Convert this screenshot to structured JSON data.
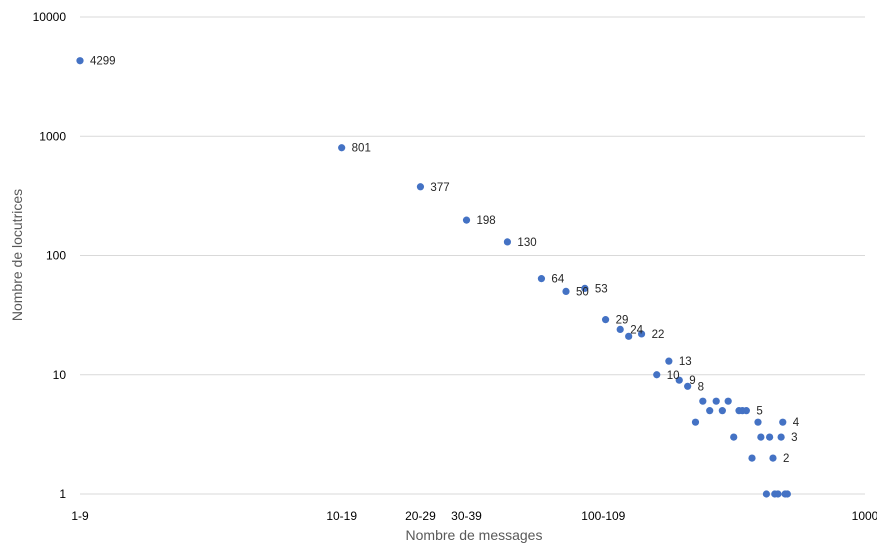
{
  "chart_data": {
    "type": "scatter",
    "title": "",
    "xlabel": "Nombre de messages",
    "ylabel": "Nombre de locutrices",
    "x_scale": "log",
    "y_scale": "log",
    "xlim": [
      1,
      1000
    ],
    "ylim": [
      1,
      10000
    ],
    "grid": "horizontal",
    "legend": "none",
    "marker_color": "#4472c4",
    "x_ticks": [
      {
        "value": 1,
        "label": "1-9"
      },
      {
        "value": 10,
        "label": "10-19"
      },
      {
        "value": 20,
        "label": "20-29"
      },
      {
        "value": 30,
        "label": "30-39"
      },
      {
        "value": 100,
        "label": "100-109"
      },
      {
        "value": 1000,
        "label": "1000"
      }
    ],
    "y_ticks": [
      {
        "value": 1,
        "label": "1"
      },
      {
        "value": 10,
        "label": "10"
      },
      {
        "value": 100,
        "label": "100"
      },
      {
        "value": 1000,
        "label": "1000"
      },
      {
        "value": 10000,
        "label": "10000"
      }
    ],
    "points": [
      {
        "x": 1,
        "y": 4299,
        "label": "4299"
      },
      {
        "x": 10,
        "y": 801,
        "label": "801"
      },
      {
        "x": 20,
        "y": 377,
        "label": "377"
      },
      {
        "x": 30,
        "y": 198,
        "label": "198"
      },
      {
        "x": 43,
        "y": 130,
        "label": "130"
      },
      {
        "x": 58,
        "y": 64,
        "label": "64"
      },
      {
        "x": 72,
        "y": 50,
        "label": "50"
      },
      {
        "x": 85,
        "y": 53,
        "label": "53"
      },
      {
        "x": 102,
        "y": 29,
        "label": "29"
      },
      {
        "x": 116,
        "y": 24,
        "label": "24"
      },
      {
        "x": 125,
        "y": 21,
        "label": ""
      },
      {
        "x": 140,
        "y": 22,
        "label": "22"
      },
      {
        "x": 160,
        "y": 10,
        "label": "10"
      },
      {
        "x": 178,
        "y": 13,
        "label": "13"
      },
      {
        "x": 195,
        "y": 9,
        "label": "9"
      },
      {
        "x": 210,
        "y": 8,
        "label": "8"
      },
      {
        "x": 225,
        "y": 4,
        "label": ""
      },
      {
        "x": 240,
        "y": 6,
        "label": ""
      },
      {
        "x": 255,
        "y": 5,
        "label": ""
      },
      {
        "x": 270,
        "y": 6,
        "label": ""
      },
      {
        "x": 285,
        "y": 5,
        "label": ""
      },
      {
        "x": 300,
        "y": 6,
        "label": ""
      },
      {
        "x": 315,
        "y": 3,
        "label": ""
      },
      {
        "x": 330,
        "y": 5,
        "label": ""
      },
      {
        "x": 340,
        "y": 5,
        "label": ""
      },
      {
        "x": 352,
        "y": 5,
        "label": "5"
      },
      {
        "x": 370,
        "y": 2,
        "label": ""
      },
      {
        "x": 390,
        "y": 4,
        "label": ""
      },
      {
        "x": 400,
        "y": 3,
        "label": ""
      },
      {
        "x": 420,
        "y": 1,
        "label": ""
      },
      {
        "x": 432,
        "y": 3,
        "label": ""
      },
      {
        "x": 445,
        "y": 2,
        "label": "2"
      },
      {
        "x": 452,
        "y": 1,
        "label": ""
      },
      {
        "x": 465,
        "y": 1,
        "label": ""
      },
      {
        "x": 478,
        "y": 3,
        "label": "3"
      },
      {
        "x": 485,
        "y": 4,
        "label": "4"
      },
      {
        "x": 495,
        "y": 1,
        "label": ""
      },
      {
        "x": 505,
        "y": 1,
        "label": ""
      }
    ]
  }
}
